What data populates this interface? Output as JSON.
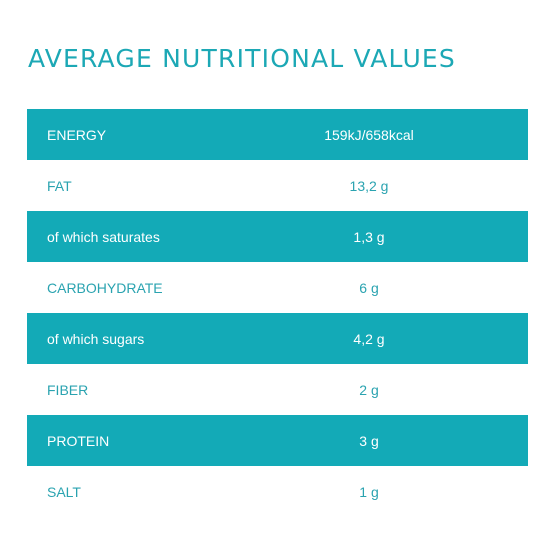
{
  "title": "AVERAGE NUTRITIONAL VALUES",
  "colors": {
    "accent": "#13aab7",
    "text_plain": "#2aa3b0",
    "text_shaded": "#ffffff"
  },
  "rows": [
    {
      "label": "ENERGY",
      "value": "159kJ/658kcal",
      "shaded": true
    },
    {
      "label": "FAT",
      "value": "13,2 g",
      "shaded": false
    },
    {
      "label": "of which saturates",
      "value": "1,3 g",
      "shaded": true
    },
    {
      "label": "CARBOHYDRATE",
      "value": "6 g",
      "shaded": false
    },
    {
      "label": "of which sugars",
      "value": "4,2 g",
      "shaded": true
    },
    {
      "label": "FIBER",
      "value": "2 g",
      "shaded": false
    },
    {
      "label": "PROTEIN",
      "value": "3 g",
      "shaded": true
    },
    {
      "label": "SALT",
      "value": "1 g",
      "shaded": false
    }
  ]
}
